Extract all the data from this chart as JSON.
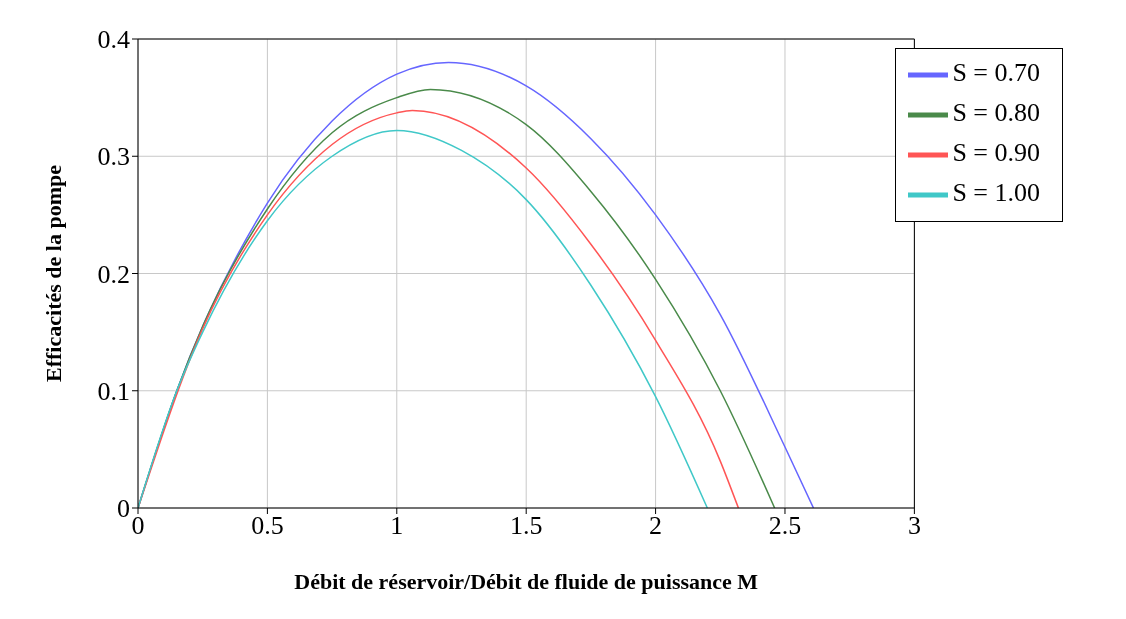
{
  "chart_data": {
    "type": "line",
    "xlabel": "Débit de réservoir/Débit de fluide de puissance M",
    "ylabel": "Efficacités de la pompe",
    "xlim": [
      0,
      3
    ],
    "xticks": [
      0,
      0.5,
      1,
      1.5,
      2,
      2.5,
      3
    ],
    "ylim": [
      0,
      0.4
    ],
    "yticks": [
      0,
      0.1,
      0.2,
      0.3,
      0.4
    ],
    "grid": true,
    "legend": "top right",
    "series": [
      {
        "name": "S = 0.70",
        "color": "#6666ff",
        "x": [
          0,
          0.15,
          0.5,
          0.75,
          1,
          1.2,
          1.5,
          1.75,
          2,
          2.25,
          2.5,
          2.61
        ],
        "values": [
          0,
          0.1,
          0.26,
          0.33,
          0.37,
          0.38,
          0.36,
          0.315,
          0.25,
          0.165,
          0.052,
          0
        ]
      },
      {
        "name": "S = 0.80",
        "color": "#4a8a4a",
        "x": [
          0,
          0.15,
          0.25,
          0.5,
          0.75,
          1,
          1.13,
          1.5,
          1.75,
          2,
          2.25,
          2.46
        ],
        "values": [
          0,
          0.1,
          0.155,
          0.255,
          0.32,
          0.35,
          0.357,
          0.327,
          0.27,
          0.195,
          0.1,
          0
        ]
      },
      {
        "name": "S = 0.90",
        "color": "#ff5555",
        "x": [
          0,
          0.25,
          0.5,
          0.75,
          1,
          1.06,
          1.5,
          1.75,
          2,
          2.25,
          2.32
        ],
        "values": [
          0,
          0.153,
          0.25,
          0.31,
          0.337,
          0.339,
          0.29,
          0.225,
          0.143,
          0.04,
          0
        ]
      },
      {
        "name": "S = 1.00",
        "color": "#40c8c8",
        "x": [
          0,
          0.15,
          0.25,
          0.5,
          0.75,
          1,
          1.25,
          1.5,
          1.75,
          2,
          2.2
        ],
        "values": [
          0,
          0.1,
          0.15,
          0.245,
          0.3,
          0.322,
          0.305,
          0.263,
          0.19,
          0.095,
          0
        ]
      }
    ]
  }
}
